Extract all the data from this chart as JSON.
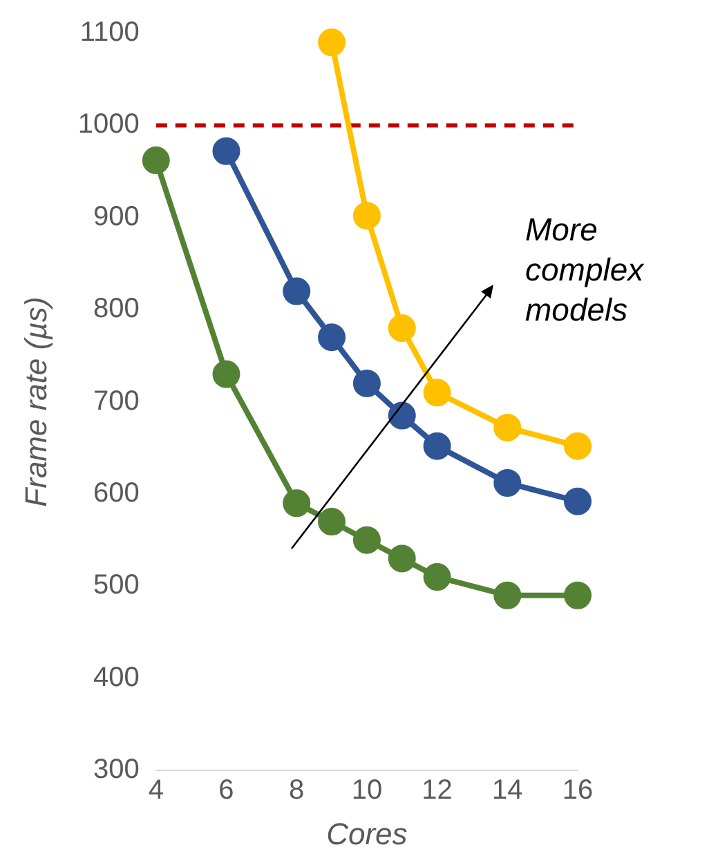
{
  "chart_data": {
    "type": "line",
    "xlabel": "Cores",
    "ylabel": "Frame rate (µs)",
    "xlim": [
      4,
      16
    ],
    "xticks": [
      4,
      6,
      8,
      10,
      12,
      14,
      16
    ],
    "ylim": [
      300,
      1100
    ],
    "yticks": [
      300,
      400,
      500,
      600,
      700,
      800,
      900,
      1000,
      1100
    ],
    "grid": false,
    "legend": false,
    "marker": "circle",
    "line_style": "solid",
    "series": [
      {
        "color": "#548235",
        "x": [
          4,
          6,
          8,
          9,
          10,
          11,
          12,
          14,
          16
        ],
        "values": [
          962,
          730,
          590,
          570,
          550,
          530,
          510,
          490,
          490
        ]
      },
      {
        "color": "#2f5597",
        "x": [
          6,
          8,
          9,
          10,
          11,
          12,
          14,
          16
        ],
        "values": [
          972,
          820,
          770,
          720,
          685,
          652,
          612,
          592
        ]
      },
      {
        "color": "#ffc000",
        "x": [
          9,
          10,
          11,
          12,
          14,
          16
        ],
        "values": [
          1090,
          902,
          780,
          710,
          672,
          652
        ]
      }
    ],
    "ref_lines": [
      {
        "axis": "y",
        "value": 1000,
        "color": "#c00000",
        "line_style": "dashed"
      }
    ],
    "annotations": [
      "More complex models"
    ]
  }
}
